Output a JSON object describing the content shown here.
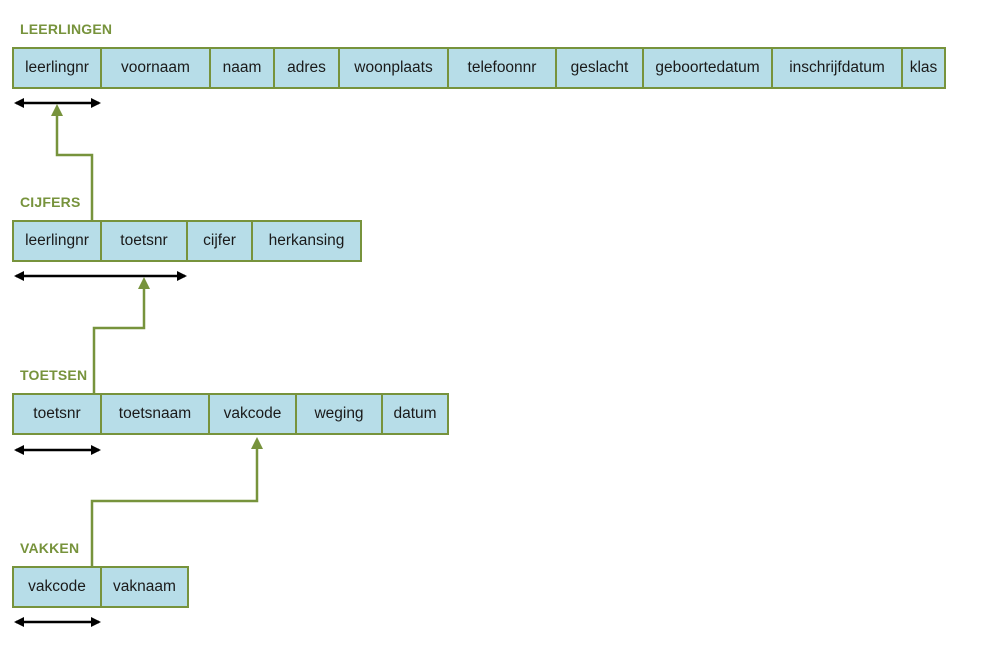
{
  "tables": {
    "leerlingen": {
      "name": "LEERLINGEN",
      "fields": [
        "leerlingnr",
        "voornaam",
        "naam",
        "adres",
        "woonplaats",
        "telefoonnr",
        "geslacht",
        "geboortedatum",
        "inschrijfdatum",
        "klas"
      ],
      "primary_key": [
        "leerlingnr"
      ]
    },
    "cijfers": {
      "name": "CIJFERS",
      "fields": [
        "leerlingnr",
        "toetsnr",
        "cijfer",
        "herkansing"
      ],
      "primary_key": [
        "leerlingnr",
        "toetsnr"
      ]
    },
    "toetsen": {
      "name": "TOETSEN",
      "fields": [
        "toetsnr",
        "toetsnaam",
        "vakcode",
        "weging",
        "datum"
      ],
      "primary_key": [
        "toetsnr"
      ]
    },
    "vakken": {
      "name": "VAKKEN",
      "fields": [
        "vakcode",
        "vaknaam"
      ],
      "primary_key": [
        "vakcode"
      ]
    }
  },
  "relations": [
    {
      "from": "CIJFERS.leerlingnr",
      "to": "LEERLINGEN.leerlingnr"
    },
    {
      "from": "TOETSEN.toetsnr",
      "to": "CIJFERS.toetsnr"
    },
    {
      "from": "VAKKEN.vakcode",
      "to": "TOETSEN.vakcode"
    }
  ],
  "colors": {
    "border": "#77933c",
    "cell_fill": "#b7dde8",
    "title": "#77933c",
    "key_arrow": "#000000"
  }
}
